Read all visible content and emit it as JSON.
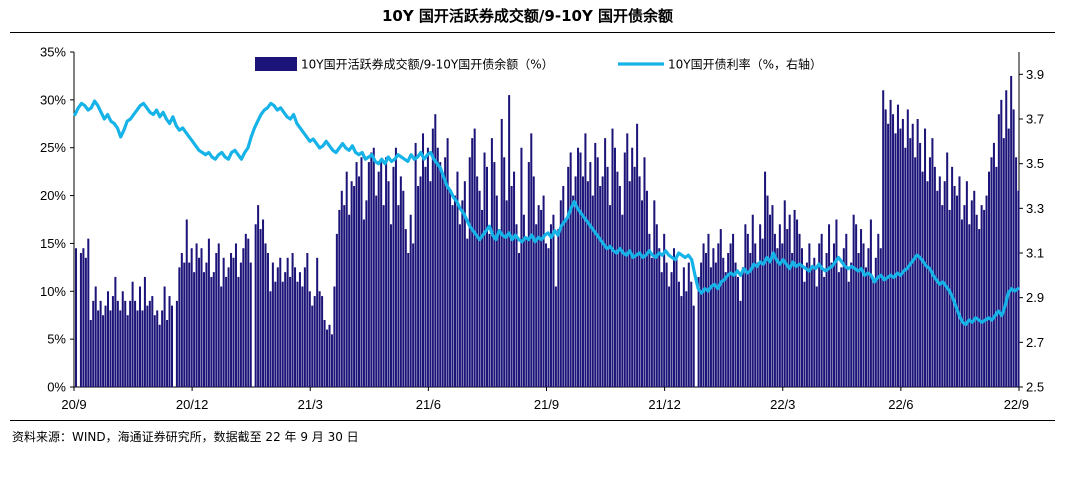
{
  "title": "10Y 国开活跃券成交额/9-10Y 国开债余额",
  "source": "资料来源：WIND，海通证券研究所，数据截至 22 年 9 月 30 日",
  "chart_data": {
    "type": "bar+line",
    "x_tick_labels": [
      "20/9",
      "20/12",
      "21/3",
      "21/6",
      "21/9",
      "21/12",
      "22/3",
      "22/6",
      "22/9"
    ],
    "y_left": {
      "range": [
        0,
        35
      ],
      "tick_labels": [
        "0%",
        "5%",
        "10%",
        "15%",
        "20%",
        "25%",
        "30%",
        "35%"
      ]
    },
    "y_right": {
      "range": [
        2.5,
        4.0
      ],
      "tick_labels": [
        "2.5",
        "2.7",
        "2.9",
        "3.1",
        "3.3",
        "3.5",
        "3.7",
        "3.9"
      ]
    },
    "legend": {
      "placement": "top"
    },
    "series": [
      {
        "name": "10Y国开活跃券成交额/9-10Y国开债余额（%）",
        "kind": "bar",
        "axis": "left",
        "color": "#1c1478",
        "values": [
          14.5,
          0,
          14,
          14.5,
          13.5,
          15.5,
          7,
          9,
          10.5,
          8,
          9,
          7.5,
          8.5,
          10,
          8,
          9.5,
          11.5,
          9,
          8,
          10,
          9,
          7.5,
          9,
          11,
          9,
          8,
          10.5,
          8,
          11.5,
          8.5,
          9,
          9.5,
          7.5,
          8,
          6.5,
          8,
          10.5,
          7,
          9.5,
          8.5,
          0,
          9,
          12.5,
          14,
          13,
          17.5,
          13,
          14.5,
          12,
          15,
          13.5,
          14.5,
          12,
          13,
          15.5,
          11.5,
          12,
          14,
          15,
          10.5,
          13.5,
          11.5,
          12.5,
          14,
          13.5,
          15,
          11.5,
          13,
          14.5,
          16,
          15.5,
          13,
          0,
          17,
          19,
          16.5,
          17.5,
          15,
          14,
          10,
          13,
          11,
          12.5,
          13.5,
          11,
          12,
          13.5,
          11.5,
          14,
          12.5,
          11,
          12,
          10.5,
          12.5,
          14,
          10,
          8.5,
          9.5,
          13.5,
          10,
          9.5,
          7,
          6,
          6.5,
          5.5,
          10.5,
          16,
          18.5,
          20.5,
          19,
          22.5,
          18,
          21.5,
          21,
          23.5,
          22,
          24,
          17.5,
          19.5,
          23.5,
          24.5,
          25,
          20,
          22.5,
          23.5,
          19,
          24,
          21.5,
          17,
          23,
          25,
          19,
          22,
          20.5,
          16.5,
          14,
          18,
          15,
          25.5,
          21,
          22,
          26.5,
          23,
          25,
          21.5,
          27,
          28.5,
          25,
          23.5,
          22,
          24,
          26,
          20.5,
          19,
          20,
          22.5,
          17,
          19.5,
          21.5,
          15.5,
          24,
          26,
          27,
          22,
          20.5,
          18.5,
          24.5,
          23,
          16,
          26,
          23.5,
          20,
          16.5,
          28,
          24,
          19.5,
          30.5,
          21,
          22.5,
          17,
          14,
          25,
          18,
          15.5,
          23.5,
          26.5,
          22,
          17,
          19,
          18.5,
          20,
          15,
          14.5,
          17,
          18,
          10.5,
          16.5,
          19.5,
          21,
          17.5,
          23,
          24.5,
          20,
          22,
          25,
          24.5,
          22,
          26.5,
          21.5,
          23.5,
          20,
          25.5,
          24,
          21,
          22,
          26,
          23,
          19,
          27,
          25,
          22.5,
          21,
          18,
          24.5,
          26.5,
          21.5,
          25,
          23,
          27.5,
          22,
          19.5,
          24,
          20.5,
          16,
          13.5,
          19.5,
          17,
          14.5,
          12,
          16,
          13,
          10.5,
          12,
          14.5,
          13.5,
          11,
          9.5,
          12.5,
          10,
          13,
          11,
          8.5,
          0,
          11.5,
          13,
          15,
          14,
          16,
          12.5,
          14.5,
          13,
          15,
          16.5,
          13.5,
          12,
          14,
          15,
          16,
          13,
          11.5,
          9,
          12.5,
          17,
          16,
          14,
          18,
          15,
          13,
          17,
          15.5,
          22.5,
          20,
          18,
          19,
          16,
          14.5,
          17,
          15,
          19.5,
          16.5,
          18,
          14,
          18.5,
          17.5,
          16,
          14.5,
          11,
          13,
          15,
          12.5,
          13.5,
          10.5,
          15,
          16,
          11.5,
          14,
          17,
          13,
          15,
          17.5,
          12,
          12.5,
          14.5,
          16,
          11,
          13,
          18,
          17,
          14,
          16.5,
          15,
          12.5,
          14.5,
          17.5,
          11,
          13.5,
          16,
          14.5,
          31,
          29,
          27.5,
          30,
          28.5,
          26.5,
          29.5,
          27,
          28,
          25,
          29,
          26,
          27.5,
          24,
          28,
          25.5,
          22.5,
          27,
          21.5,
          24,
          26,
          23,
          20.5,
          22,
          19,
          21.5,
          24.5,
          18.5,
          23,
          21,
          20,
          22,
          17.5,
          19,
          21.5,
          17,
          19.5,
          20.5,
          18,
          16.5,
          19,
          18.5,
          20,
          22.5,
          24,
          25.5,
          23,
          28.5,
          30,
          26,
          31,
          27,
          32.5,
          29,
          24,
          20.5
        ]
      },
      {
        "name": "10Y国开债利率（%，右轴）",
        "kind": "line",
        "axis": "right",
        "color": "#16b3e8",
        "values": [
          3.72,
          3.75,
          3.77,
          3.76,
          3.74,
          3.75,
          3.78,
          3.76,
          3.73,
          3.7,
          3.72,
          3.69,
          3.68,
          3.66,
          3.62,
          3.65,
          3.69,
          3.7,
          3.72,
          3.74,
          3.76,
          3.77,
          3.75,
          3.73,
          3.72,
          3.74,
          3.71,
          3.73,
          3.7,
          3.68,
          3.71,
          3.67,
          3.65,
          3.66,
          3.64,
          3.62,
          3.6,
          3.58,
          3.56,
          3.55,
          3.54,
          3.55,
          3.53,
          3.52,
          3.54,
          3.55,
          3.53,
          3.52,
          3.55,
          3.56,
          3.54,
          3.52,
          3.55,
          3.57,
          3.62,
          3.66,
          3.69,
          3.72,
          3.74,
          3.75,
          3.77,
          3.76,
          3.74,
          3.75,
          3.73,
          3.71,
          3.7,
          3.72,
          3.68,
          3.66,
          3.64,
          3.62,
          3.6,
          3.61,
          3.59,
          3.57,
          3.58,
          3.6,
          3.58,
          3.56,
          3.55,
          3.57,
          3.59,
          3.57,
          3.56,
          3.58,
          3.55,
          3.54,
          3.55,
          3.52,
          3.53,
          3.54,
          3.51,
          3.5,
          3.52,
          3.5,
          3.53,
          3.51,
          3.52,
          3.54,
          3.53,
          3.52,
          3.51,
          3.54,
          3.52,
          3.53,
          3.55,
          3.52,
          3.54,
          3.55,
          3.52,
          3.5,
          3.48,
          3.44,
          3.4,
          3.38,
          3.35,
          3.33,
          3.3,
          3.28,
          3.25,
          3.22,
          3.2,
          3.18,
          3.16,
          3.18,
          3.2,
          3.22,
          3.18,
          3.16,
          3.2,
          3.18,
          3.17,
          3.19,
          3.16,
          3.18,
          3.16,
          3.15,
          3.17,
          3.16,
          3.18,
          3.15,
          3.17,
          3.16,
          3.18,
          3.19,
          3.17,
          3.2,
          3.18,
          3.22,
          3.24,
          3.26,
          3.3,
          3.33,
          3.3,
          3.28,
          3.26,
          3.24,
          3.22,
          3.2,
          3.18,
          3.16,
          3.14,
          3.12,
          3.13,
          3.11,
          3.1,
          3.12,
          3.1,
          3.09,
          3.11,
          3.08,
          3.09,
          3.1,
          3.08,
          3.09,
          3.11,
          3.09,
          3.08,
          3.1,
          3.09,
          3.11,
          3.09,
          3.08,
          3.07,
          3.1,
          3.09,
          3.08,
          3.09,
          3.07,
          3.0,
          2.94,
          2.92,
          2.94,
          2.93,
          2.95,
          2.96,
          2.94,
          2.97,
          2.98,
          3.0,
          3.01,
          3.0,
          3.02,
          3.0,
          3.03,
          3.01,
          3.02,
          3.05,
          3.04,
          3.06,
          3.05,
          3.08,
          3.06,
          3.1,
          3.07,
          3.05,
          3.07,
          3.05,
          3.03,
          3.06,
          3.04,
          3.05,
          3.04,
          3.03,
          3.02,
          3.04,
          3.03,
          3.05,
          3.03,
          3.02,
          3.03,
          3.04,
          3.06,
          3.08,
          3.06,
          3.04,
          3.03,
          3.04,
          3.03,
          3.02,
          3.03,
          3.0,
          3.01,
          3.0,
          2.97,
          2.99,
          3.0,
          2.98,
          2.99,
          3.0,
          2.99,
          3.01,
          3.0,
          3.02,
          3.03,
          3.05,
          3.07,
          3.09,
          3.08,
          3.06,
          3.04,
          3.03,
          3.0,
          2.98,
          2.96,
          2.97,
          2.95,
          2.93,
          2.9,
          2.86,
          2.82,
          2.79,
          2.78,
          2.8,
          2.79,
          2.81,
          2.8,
          2.79,
          2.8,
          2.81,
          2.8,
          2.82,
          2.84,
          2.82,
          2.86,
          2.92,
          2.94,
          2.93,
          2.94
        ]
      }
    ]
  }
}
